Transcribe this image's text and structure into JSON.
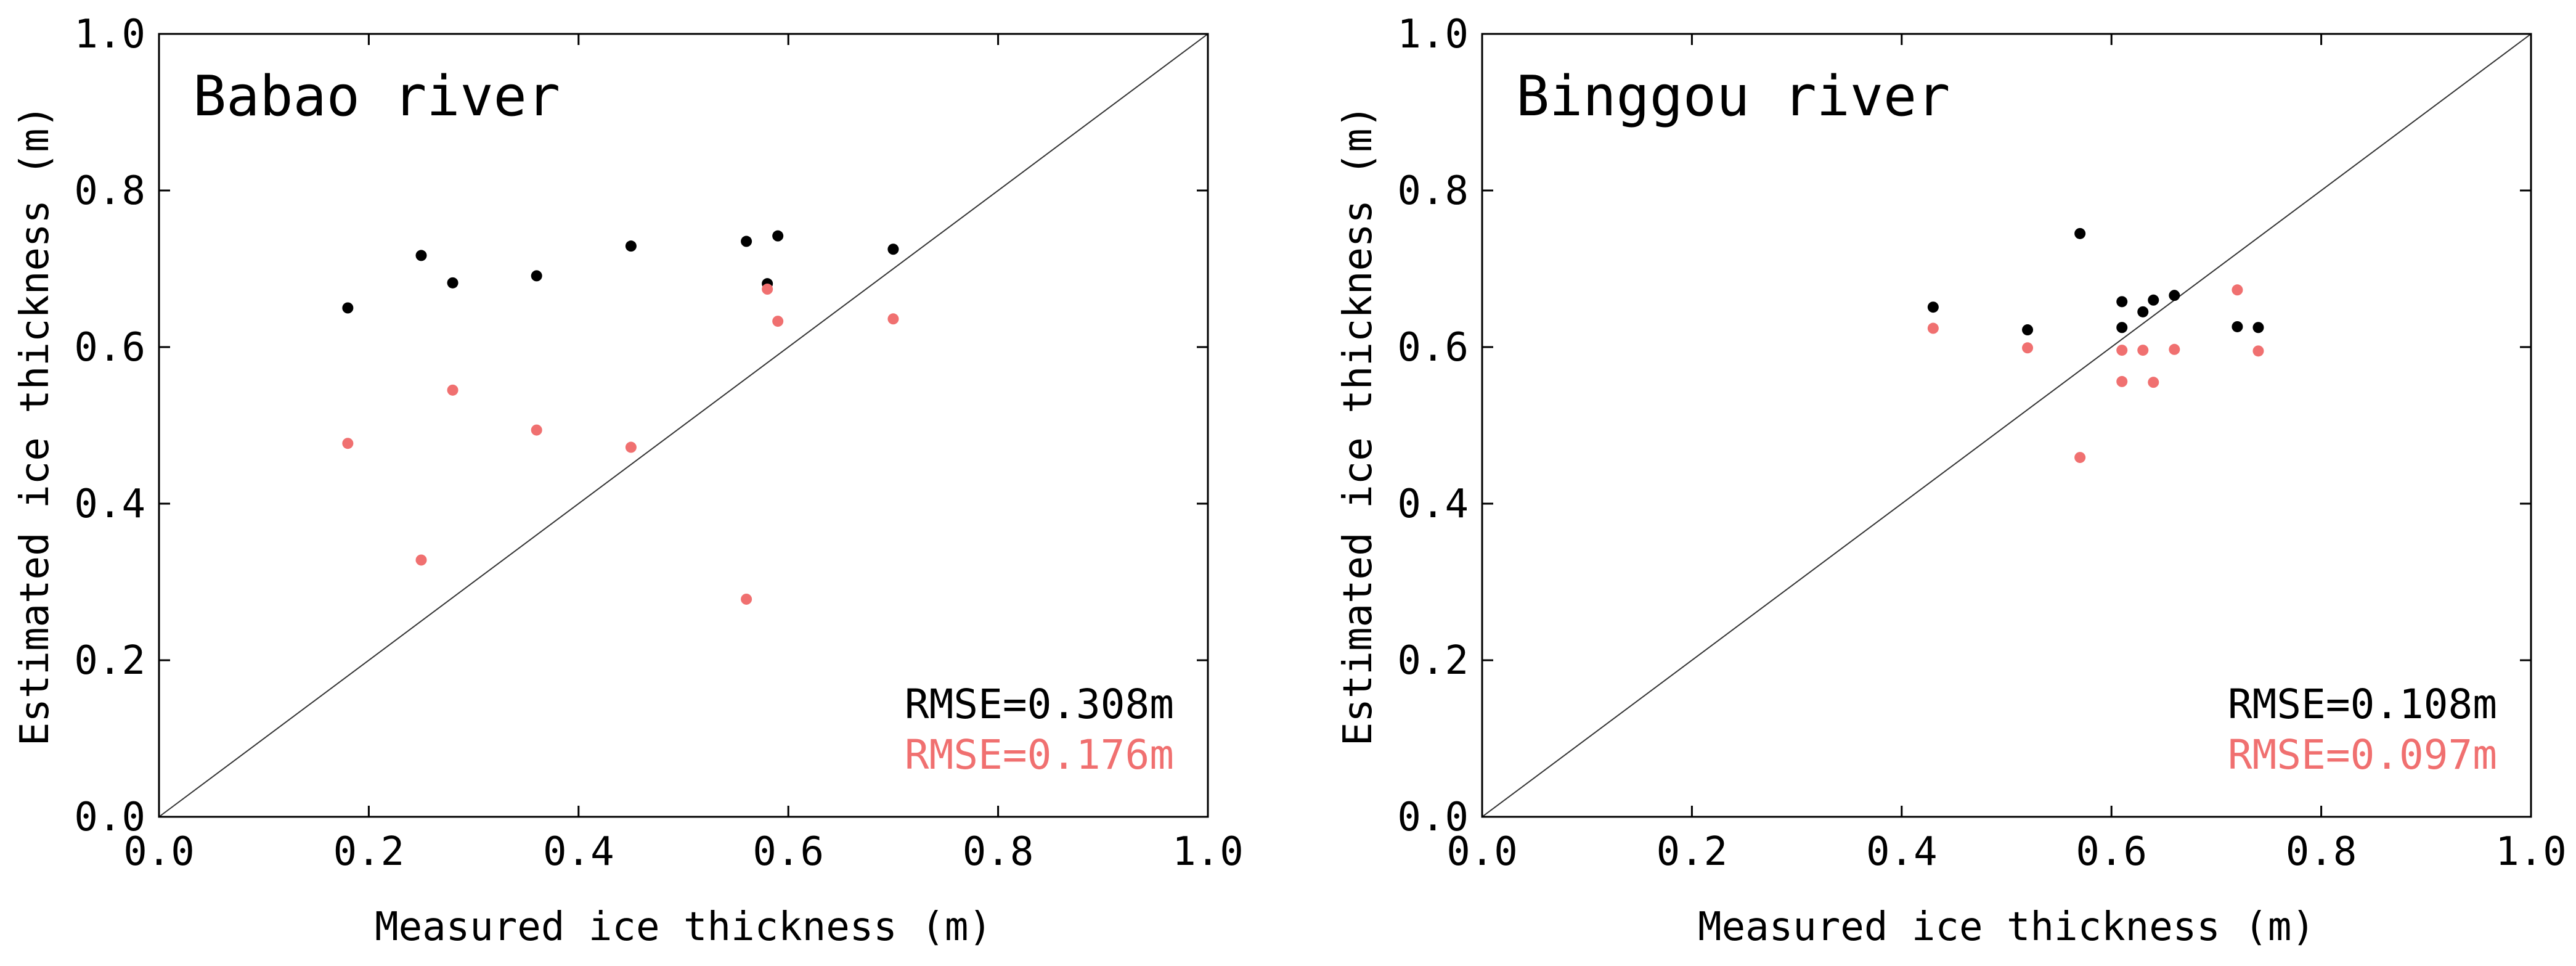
{
  "colors": {
    "series_black": "#000000",
    "series_red": "#f07070",
    "axis": "#000000",
    "diagonal": "#333333"
  },
  "chart_data": [
    {
      "type": "scatter",
      "title": "Babao river",
      "xlabel": "Measured ice thickness (m)",
      "ylabel": "Estimated ice thickness (m)",
      "xlim": [
        0.0,
        1.0
      ],
      "ylim": [
        0.0,
        1.0
      ],
      "xticks": [
        "0.0",
        "0.2",
        "0.4",
        "0.6",
        "0.8",
        "1.0"
      ],
      "yticks": [
        "0.0",
        "0.2",
        "0.4",
        "0.6",
        "0.8",
        "1.0"
      ],
      "reference_line": "1:1",
      "series": [
        {
          "name": "black",
          "color": "#000000",
          "rmse_label": "RMSE=0.308m",
          "points": [
            [
              0.18,
              0.65
            ],
            [
              0.25,
              0.717
            ],
            [
              0.28,
              0.682
            ],
            [
              0.36,
              0.691
            ],
            [
              0.45,
              0.729
            ],
            [
              0.56,
              0.735
            ],
            [
              0.58,
              0.681
            ],
            [
              0.59,
              0.742
            ],
            [
              0.7,
              0.725
            ]
          ]
        },
        {
          "name": "red",
          "color": "#f07070",
          "rmse_label": "RMSE=0.176m",
          "points": [
            [
              0.18,
              0.477
            ],
            [
              0.25,
              0.328
            ],
            [
              0.28,
              0.545
            ],
            [
              0.36,
              0.494
            ],
            [
              0.45,
              0.472
            ],
            [
              0.56,
              0.278
            ],
            [
              0.58,
              0.674
            ],
            [
              0.59,
              0.633
            ],
            [
              0.7,
              0.636
            ]
          ]
        }
      ]
    },
    {
      "type": "scatter",
      "title": "Binggou river",
      "xlabel": "Measured ice thickness (m)",
      "ylabel": "Estimated ice thickness (m)",
      "xlim": [
        0.0,
        1.0
      ],
      "ylim": [
        0.0,
        1.0
      ],
      "xticks": [
        "0.0",
        "0.2",
        "0.4",
        "0.6",
        "0.8",
        "1.0"
      ],
      "yticks": [
        "0.0",
        "0.2",
        "0.4",
        "0.6",
        "0.8",
        "1.0"
      ],
      "reference_line": "1:1",
      "series": [
        {
          "name": "black",
          "color": "#000000",
          "rmse_label": "RMSE=0.108m",
          "points": [
            [
              0.43,
              0.651
            ],
            [
              0.52,
              0.622
            ],
            [
              0.57,
              0.745
            ],
            [
              0.61,
              0.658
            ],
            [
              0.61,
              0.625
            ],
            [
              0.63,
              0.645
            ],
            [
              0.64,
              0.66
            ],
            [
              0.66,
              0.666
            ],
            [
              0.72,
              0.626
            ],
            [
              0.74,
              0.625
            ]
          ]
        },
        {
          "name": "red",
          "color": "#f07070",
          "rmse_label": "RMSE=0.097m",
          "points": [
            [
              0.43,
              0.624
            ],
            [
              0.52,
              0.599
            ],
            [
              0.57,
              0.459
            ],
            [
              0.61,
              0.596
            ],
            [
              0.61,
              0.556
            ],
            [
              0.63,
              0.596
            ],
            [
              0.64,
              0.555
            ],
            [
              0.66,
              0.597
            ],
            [
              0.72,
              0.673
            ],
            [
              0.74,
              0.595
            ]
          ]
        }
      ]
    }
  ]
}
